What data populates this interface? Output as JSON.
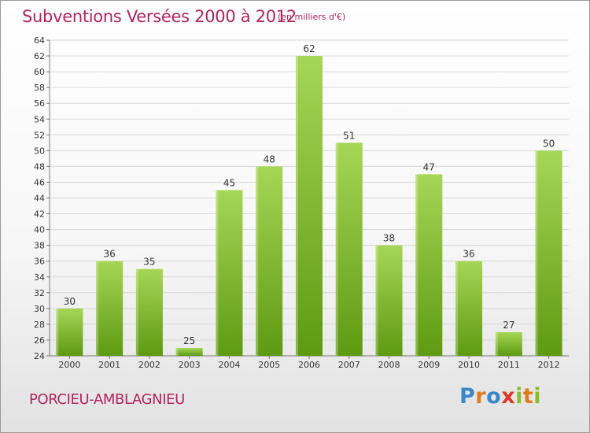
{
  "header": {
    "title": "Subventions Versées 2000 à 2012",
    "subtitle": "(en milliers d'€)"
  },
  "footer": {
    "commune": "PORCIEU-AMBLAGNIEU",
    "logo": "Proxiti"
  },
  "colors": {
    "bar_top": "#a6d656",
    "bar_bottom": "#5e9a12",
    "text_accent": "#b0245e",
    "grid": "#d8d8d8"
  },
  "chart_data": {
    "type": "bar",
    "categories": [
      "2000",
      "2001",
      "2002",
      "2003",
      "2004",
      "2005",
      "2006",
      "2007",
      "2008",
      "2009",
      "2010",
      "2011",
      "2012"
    ],
    "values": [
      30,
      36,
      35,
      25,
      45,
      48,
      62,
      51,
      38,
      47,
      36,
      27,
      50
    ],
    "ylim": [
      24,
      64
    ],
    "yticks": [
      24,
      26,
      28,
      30,
      32,
      34,
      36,
      38,
      40,
      42,
      44,
      46,
      48,
      50,
      52,
      54,
      56,
      58,
      60,
      62,
      64
    ],
    "grid": true,
    "data_labels": true
  }
}
